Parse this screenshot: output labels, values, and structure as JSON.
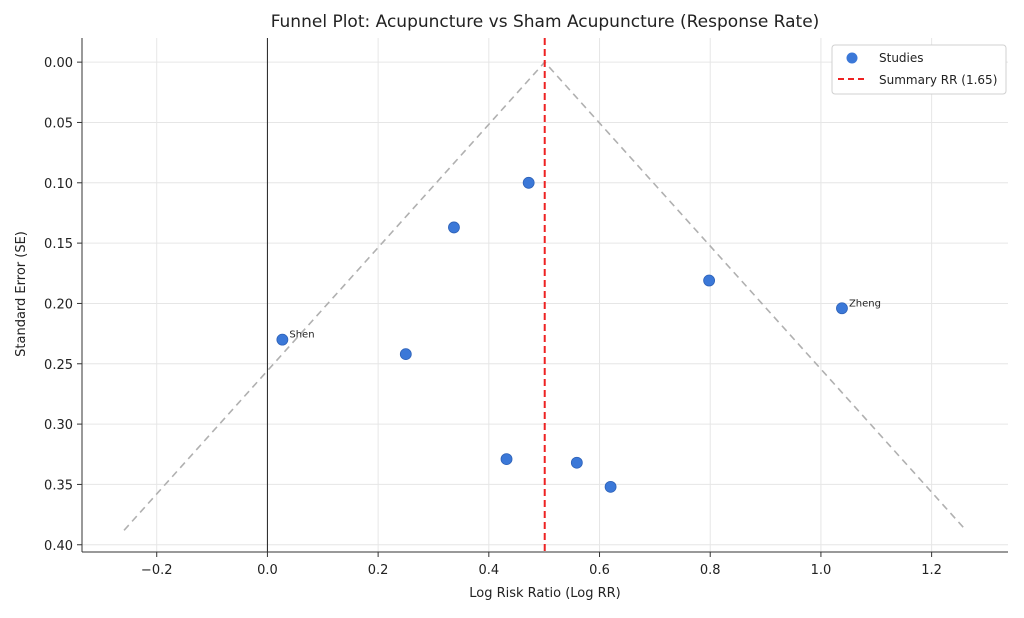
{
  "chart_data": {
    "type": "scatter",
    "title": "Funnel Plot: Acupuncture vs Sham Acupuncture (Response Rate)",
    "xlabel": "Log Risk Ratio (Log RR)",
    "ylabel": "Standard Error (SE)",
    "xlim": [
      -0.335,
      1.338
    ],
    "ylim": [
      0.406,
      -0.02
    ],
    "y_inverted": true,
    "grid": true,
    "xticks": [
      -0.2,
      0.0,
      0.2,
      0.4,
      0.6,
      0.8,
      1.0,
      1.2
    ],
    "xtick_labels": [
      "−0.2",
      "0.0",
      "0.2",
      "0.4",
      "0.6",
      "0.8",
      "1.0",
      "1.2"
    ],
    "yticks": [
      0.0,
      0.05,
      0.1,
      0.15,
      0.2,
      0.25,
      0.3,
      0.35,
      0.4
    ],
    "ytick_labels": [
      "0.00",
      "0.05",
      "0.10",
      "0.15",
      "0.20",
      "0.25",
      "0.30",
      "0.35",
      "0.40"
    ],
    "series": [
      {
        "name": "Studies",
        "color": "#3b78d8",
        "points": [
          {
            "x": 0.472,
            "y": 0.1,
            "label": ""
          },
          {
            "x": 0.337,
            "y": 0.137,
            "label": ""
          },
          {
            "x": 0.798,
            "y": 0.181,
            "label": ""
          },
          {
            "x": 1.038,
            "y": 0.204,
            "label": "Zheng"
          },
          {
            "x": 0.027,
            "y": 0.23,
            "label": "Shen"
          },
          {
            "x": 0.25,
            "y": 0.242,
            "label": ""
          },
          {
            "x": 0.432,
            "y": 0.329,
            "label": ""
          },
          {
            "x": 0.559,
            "y": 0.332,
            "label": ""
          },
          {
            "x": 0.62,
            "y": 0.352,
            "label": ""
          }
        ]
      }
    ],
    "summary_line": {
      "name": "Summary RR (1.65)",
      "x": 0.501,
      "color": "#ee2222"
    },
    "null_line": {
      "x": 0.0,
      "color": "#222222"
    },
    "funnel": {
      "apex_x": 0.501,
      "apex_y": 0.0,
      "bottom_y": 0.388,
      "left_x": -0.259,
      "right_x": 1.262,
      "color": "#b0b0b0"
    },
    "legend": {
      "placement": "top-right",
      "entries": [
        "Studies",
        "Summary RR (1.65)"
      ]
    }
  }
}
